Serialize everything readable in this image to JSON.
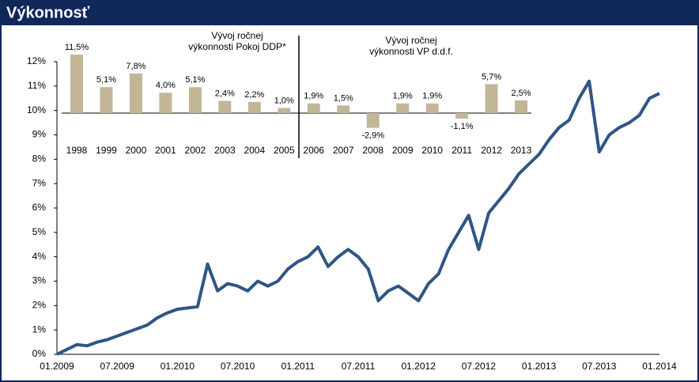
{
  "chart_data": [
    {
      "type": "line",
      "title": "Výkonnosť",
      "categories": [
        "01.2009",
        null,
        null,
        null,
        null,
        null,
        "07.2009",
        null,
        null,
        null,
        null,
        null,
        "01.2010",
        null,
        null,
        null,
        null,
        null,
        "07.2010",
        null,
        null,
        null,
        null,
        null,
        "01.2011",
        null,
        null,
        null,
        null,
        null,
        "07.2011",
        null,
        null,
        null,
        null,
        null,
        "01.2012",
        null,
        null,
        null,
        null,
        null,
        "07.2012",
        null,
        null,
        null,
        null,
        null,
        "01.2013",
        null,
        null,
        null,
        null,
        null,
        "07.2013",
        null,
        null,
        null,
        null,
        null,
        "01.2014"
      ],
      "series": [
        {
          "name": null,
          "color": "#2f5586",
          "values": [
            0.0,
            0.2,
            0.4,
            0.35,
            0.5,
            0.6,
            0.75,
            0.9,
            1.05,
            1.2,
            1.5,
            1.7,
            1.85,
            1.9,
            1.95,
            3.7,
            2.6,
            2.9,
            2.8,
            2.6,
            3.0,
            2.8,
            3.0,
            3.5,
            3.8,
            4.0,
            4.4,
            3.6,
            4.0,
            4.3,
            4.0,
            3.5,
            2.2,
            2.6,
            2.8,
            2.5,
            2.2,
            2.9,
            3.3,
            4.3,
            5.0,
            5.7,
            4.3,
            5.8,
            6.3,
            6.8,
            7.4,
            7.8,
            8.2,
            8.8,
            9.3,
            9.6,
            10.5,
            11.2,
            8.3,
            9.0,
            9.3,
            9.5,
            9.8,
            10.5,
            10.7
          ]
        }
      ],
      "ylim": [
        0,
        12
      ],
      "yticks": [
        {
          "value": 0,
          "label": "0%"
        },
        {
          "value": 1,
          "label": "1%"
        },
        {
          "value": 2,
          "label": "2%"
        },
        {
          "value": 3,
          "label": "3%"
        },
        {
          "value": 4,
          "label": "4%"
        },
        {
          "value": 5,
          "label": "5%"
        },
        {
          "value": 6,
          "label": "6%"
        },
        {
          "value": 7,
          "label": "7%"
        },
        {
          "value": 8,
          "label": "8%"
        },
        {
          "value": 9,
          "label": "9%"
        },
        {
          "value": 10,
          "label": "10%"
        },
        {
          "value": 11,
          "label": "11%"
        },
        {
          "value": 12,
          "label": "12%"
        }
      ]
    },
    {
      "type": "bar",
      "annotations": [
        "Vývoj ročnej výkonnosti Pokoj DDP*",
        "Vývoj ročnej výkonnosti VP d.d.f."
      ],
      "categories": [
        "1998",
        "1999",
        "2000",
        "2001",
        "2002",
        "2003",
        "2004",
        "2005",
        "2006",
        "2007",
        "2008",
        "2009",
        "2010",
        "2011",
        "2012",
        "2013"
      ],
      "values": [
        11.5,
        5.1,
        7.8,
        4.0,
        5.1,
        2.4,
        2.2,
        1.0,
        1.9,
        1.5,
        -2.9,
        1.9,
        1.9,
        -1.1,
        5.7,
        2.5
      ],
      "value_labels": [
        "11,5%",
        "5,1%",
        "7,8%",
        "4,0%",
        "5,1%",
        "2,4%",
        "2,2%",
        "1,0%",
        "1,9%",
        "1,5%",
        "-2,9%",
        "1,9%",
        "1,9%",
        "-1,1%",
        "5,7%",
        "2,5%"
      ],
      "color": "#c2b697"
    }
  ]
}
